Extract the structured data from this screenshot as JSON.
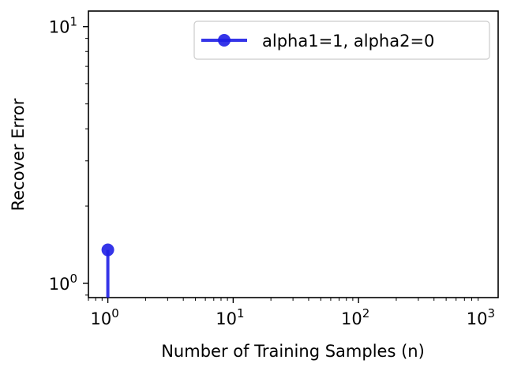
{
  "chart_data": {
    "type": "line",
    "xlabel": "Number of Training Samples (n)",
    "ylabel": "Recover Error",
    "xscale": "log",
    "yscale": "log",
    "xlim": [
      0.7,
      1300
    ],
    "ylim": [
      0.88,
      11.5
    ],
    "x_ticks": [
      {
        "value": 1,
        "base": "10",
        "exp": "0"
      },
      {
        "value": 10,
        "base": "10",
        "exp": "1"
      },
      {
        "value": 100,
        "base": "10",
        "exp": "2"
      },
      {
        "value": 1000,
        "base": "10",
        "exp": "3"
      }
    ],
    "y_ticks": [
      {
        "value": 1,
        "base": "10",
        "exp": "0"
      },
      {
        "value": 10,
        "base": "10",
        "exp": "1"
      }
    ],
    "grid": false,
    "legend_position": "upper right",
    "series": [
      {
        "name": "alpha1=1, alpha2=0",
        "color": "#1f1fe6",
        "marker": "circle",
        "x": [
          1,
          1
        ],
        "y": [
          1.35,
          0.8
        ]
      }
    ]
  }
}
